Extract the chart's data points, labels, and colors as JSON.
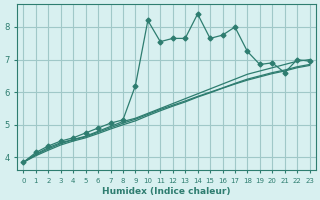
{
  "xlabel": "Humidex (Indice chaleur)",
  "ylabel": "",
  "bg_color": "#d8f0f0",
  "grid_color": "#a0c8c8",
  "line_color": "#2e7d70",
  "xlim": [
    -0.5,
    23.5
  ],
  "ylim": [
    3.6,
    8.7
  ],
  "xticks": [
    0,
    1,
    2,
    3,
    4,
    5,
    6,
    7,
    8,
    9,
    10,
    11,
    12,
    13,
    14,
    15,
    16,
    17,
    18,
    19,
    20,
    21,
    22,
    23
  ],
  "yticks": [
    4,
    5,
    6,
    7,
    8
  ],
  "series1_x": [
    0,
    1,
    2,
    3,
    4,
    5,
    6,
    7,
    8,
    9,
    10,
    11,
    12,
    13,
    14,
    15,
    16,
    17,
    18,
    19,
    20,
    21,
    22,
    23
  ],
  "series1_y": [
    3.85,
    4.15,
    4.35,
    4.5,
    4.6,
    4.75,
    4.9,
    5.05,
    5.15,
    6.2,
    8.2,
    7.55,
    7.65,
    7.65,
    8.4,
    7.65,
    7.75,
    8.0,
    7.25,
    6.85,
    6.9,
    6.6,
    7.0,
    6.95
  ],
  "series2_x": [
    0,
    1,
    2,
    3,
    4,
    5,
    6,
    7,
    8,
    9,
    10,
    11,
    12,
    13,
    14,
    15,
    16,
    17,
    18,
    19,
    20,
    21,
    22,
    23
  ],
  "series2_y": [
    3.85,
    4.1,
    4.3,
    4.45,
    4.55,
    4.65,
    4.8,
    4.95,
    5.1,
    5.2,
    5.35,
    5.5,
    5.65,
    5.8,
    5.95,
    6.1,
    6.25,
    6.4,
    6.55,
    6.65,
    6.75,
    6.85,
    6.95,
    7.0
  ],
  "series3_x": [
    0,
    1,
    2,
    3,
    4,
    5,
    6,
    7,
    8,
    9,
    10,
    11,
    12,
    13,
    14,
    15,
    16,
    17,
    18,
    19,
    20,
    21,
    22,
    23
  ],
  "series3_y": [
    3.85,
    4.05,
    4.22,
    4.38,
    4.5,
    4.6,
    4.73,
    4.87,
    5.0,
    5.12,
    5.28,
    5.43,
    5.57,
    5.7,
    5.85,
    5.98,
    6.12,
    6.25,
    6.37,
    6.47,
    6.57,
    6.65,
    6.75,
    6.82
  ],
  "series4_x": [
    0,
    1,
    2,
    3,
    4,
    5,
    6,
    7,
    8,
    9,
    10,
    11,
    12,
    13,
    14,
    15,
    16,
    17,
    18,
    19,
    20,
    21,
    22,
    23
  ],
  "series4_y": [
    3.85,
    4.08,
    4.26,
    4.42,
    4.54,
    4.63,
    4.77,
    4.91,
    5.05,
    5.17,
    5.32,
    5.47,
    5.6,
    5.73,
    5.87,
    6.0,
    6.13,
    6.27,
    6.4,
    6.5,
    6.6,
    6.68,
    6.78,
    6.85
  ]
}
